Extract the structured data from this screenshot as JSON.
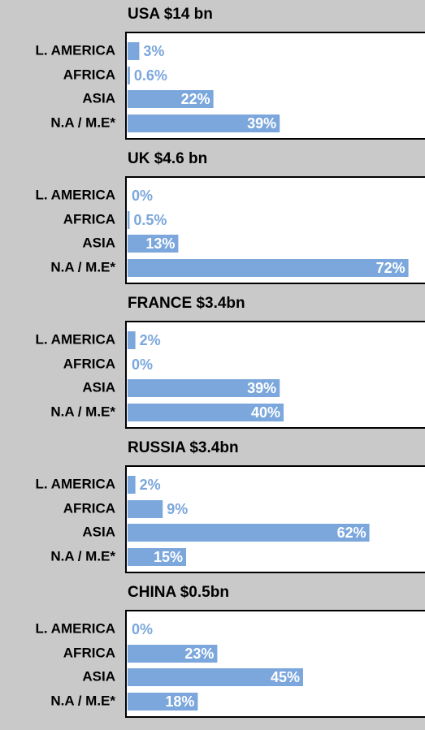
{
  "chart_data": [
    {
      "type": "bar",
      "title": "USA $14 bn",
      "categories": [
        "L. AMERICA",
        "AFRICA",
        "ASIA",
        "N.A / M.E*"
      ],
      "values": [
        3,
        0.6,
        22,
        39
      ],
      "value_labels": [
        "3%",
        "0.6%",
        "22%",
        "39%"
      ],
      "color": "#7ba7dc"
    },
    {
      "type": "bar",
      "title": "UK $4.6 bn",
      "categories": [
        "L. AMERICA",
        "AFRICA",
        "ASIA",
        "N.A / M.E*"
      ],
      "values": [
        0,
        0.5,
        13,
        72
      ],
      "value_labels": [
        "0%",
        "0.5%",
        "13%",
        "72%"
      ],
      "color": "#7ba7dc"
    },
    {
      "type": "bar",
      "title": "FRANCE $3.4bn",
      "categories": [
        "L. AMERICA",
        "AFRICA",
        "ASIA",
        "N.A / M.E*"
      ],
      "values": [
        2,
        0,
        39,
        40
      ],
      "value_labels": [
        "2%",
        "0%",
        "39%",
        "40%"
      ],
      "color": "#7ba7dc"
    },
    {
      "type": "bar",
      "title": "RUSSIA $3.4bn",
      "categories": [
        "L. AMERICA",
        "AFRICA",
        "ASIA",
        "N.A / M.E*"
      ],
      "values": [
        2,
        9,
        62,
        15
      ],
      "value_labels": [
        "2%",
        "9%",
        "62%",
        "15%"
      ],
      "color": "#7ba7dc"
    },
    {
      "type": "bar",
      "title": "CHINA $0.5bn",
      "categories": [
        "L. AMERICA",
        "AFRICA",
        "ASIA",
        "N.A / M.E*"
      ],
      "values": [
        0,
        23,
        45,
        18
      ],
      "value_labels": [
        "0%",
        "23%",
        "45%",
        "18%"
      ],
      "color": "#7ba7dc"
    }
  ]
}
